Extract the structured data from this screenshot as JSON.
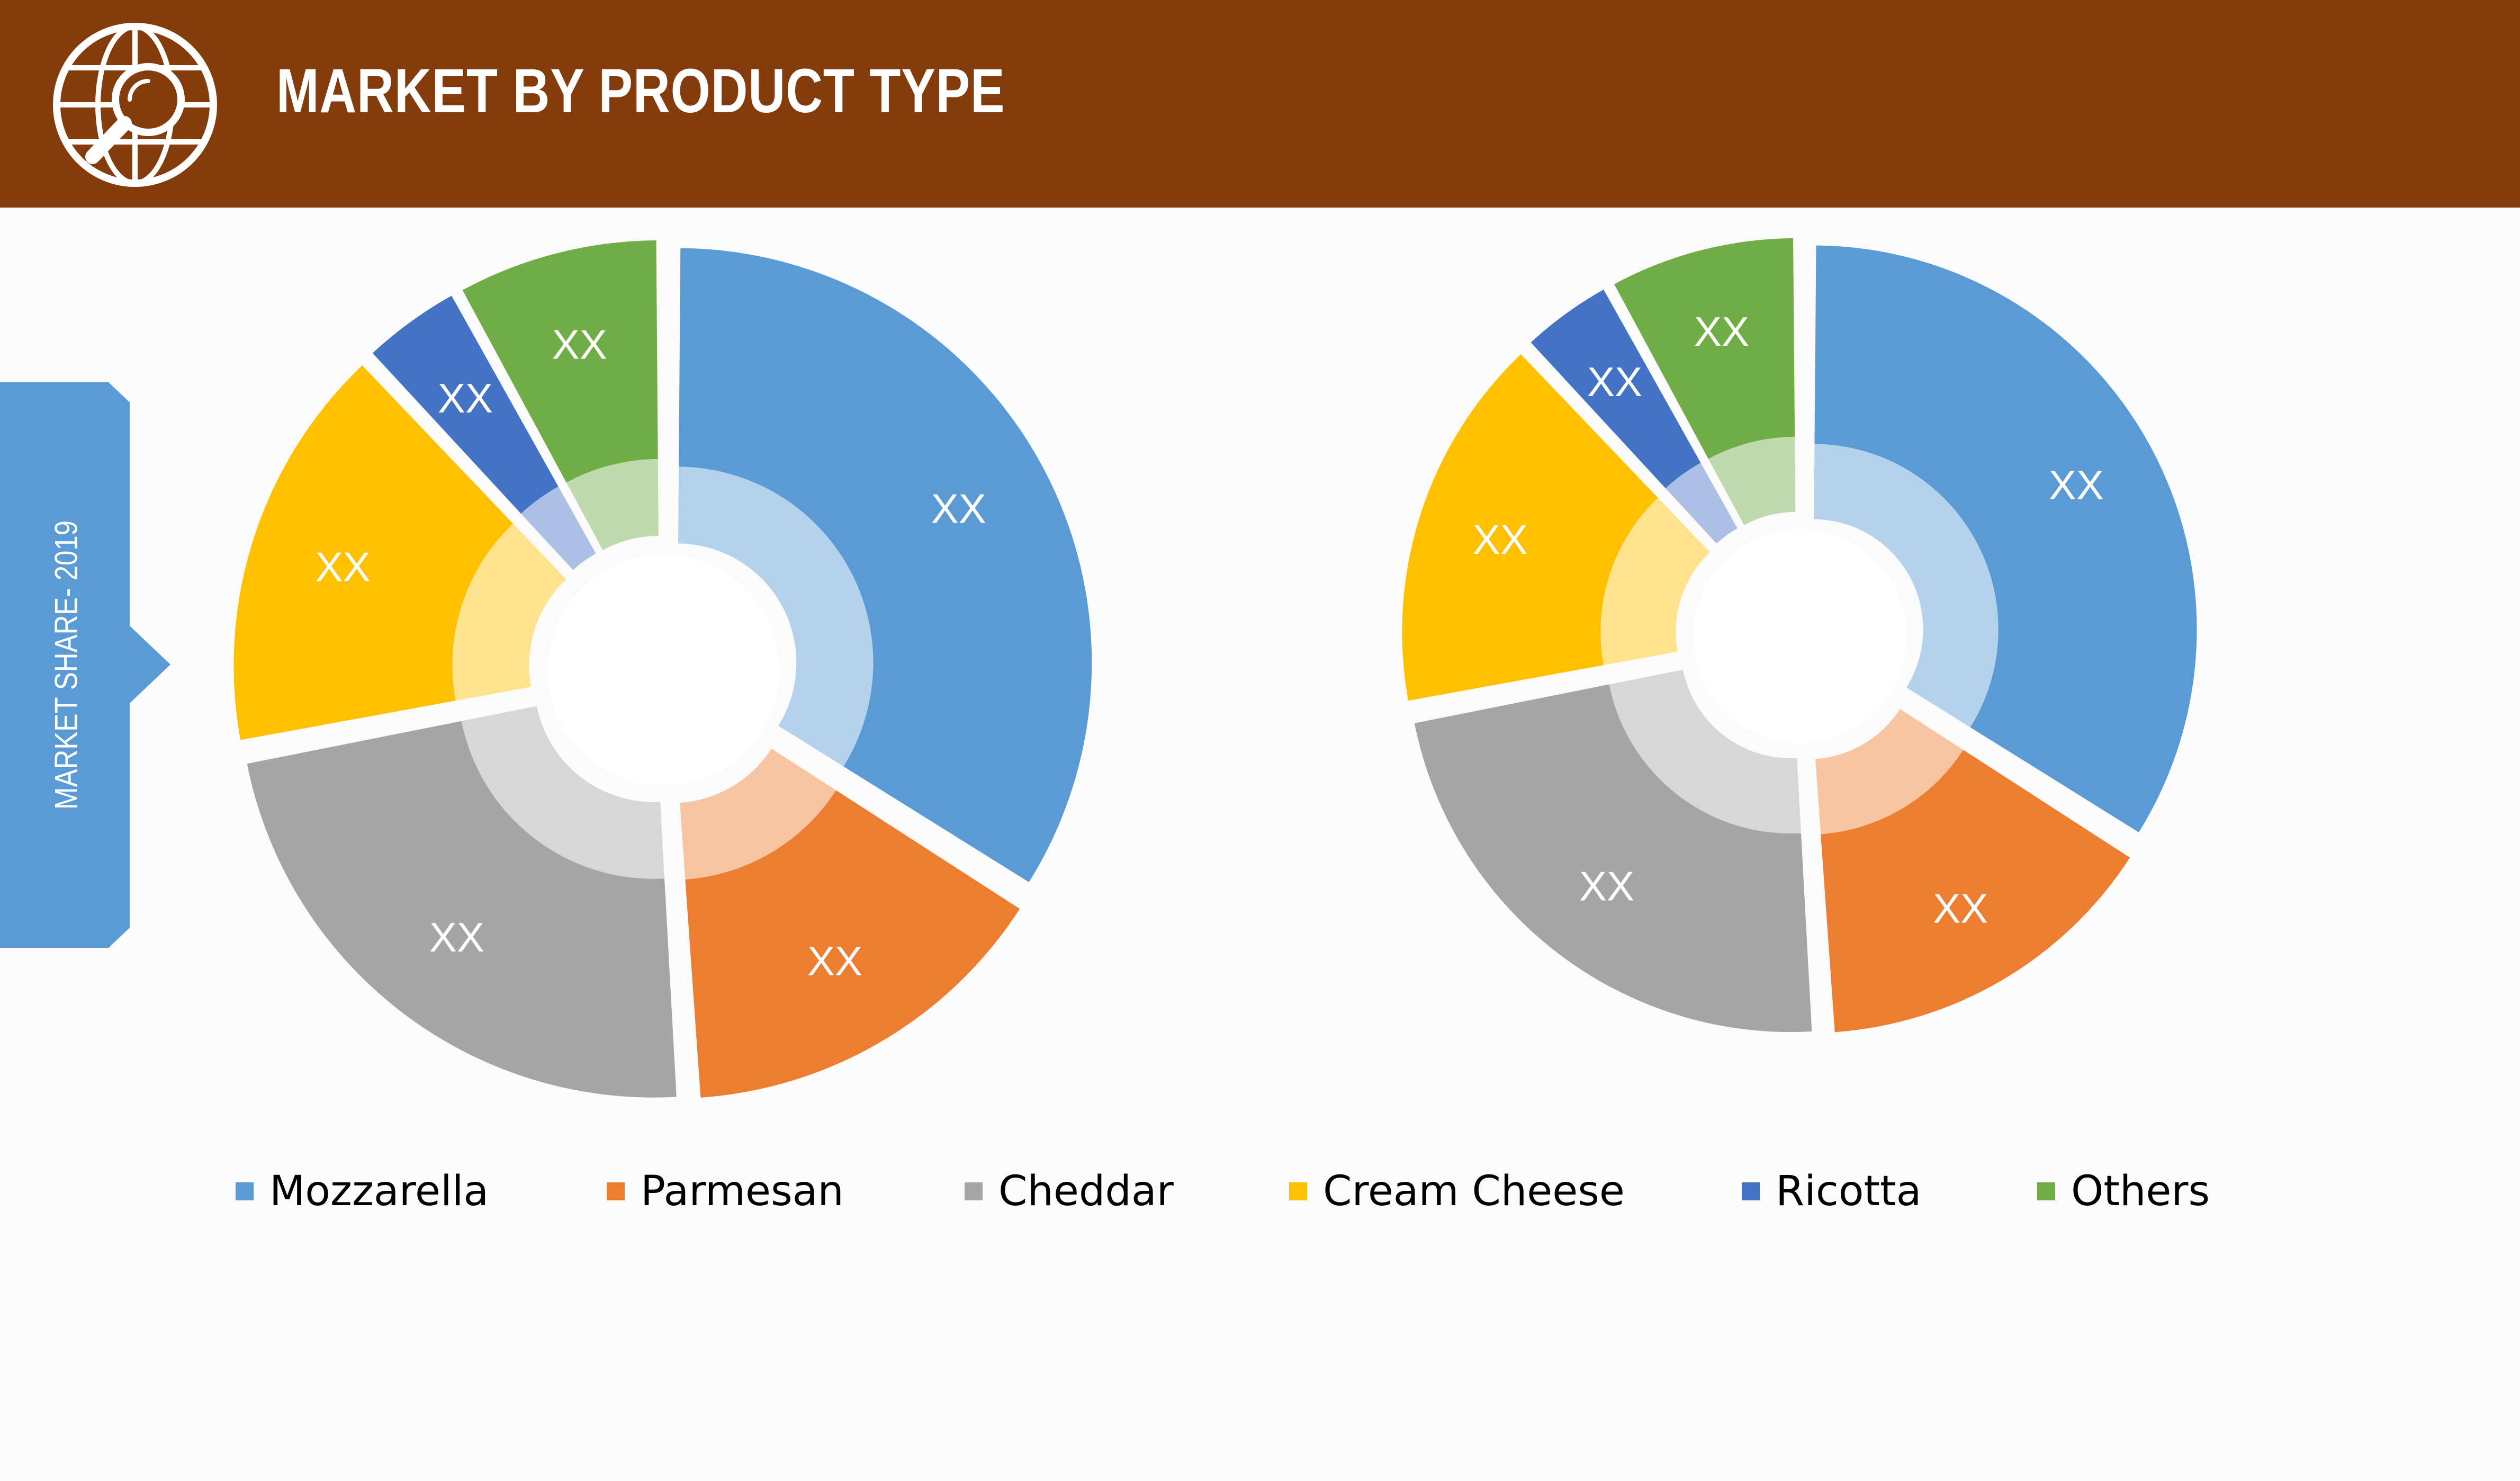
{
  "header": {
    "title": "MARKET BY PRODUCT TYPE",
    "icon": "globe-search-icon",
    "background": "#843c0c"
  },
  "side_tab": {
    "label": "MARKET SHARE- 2019",
    "color": "#5b9bd5"
  },
  "chart_data": [
    {
      "type": "pie",
      "style": "exploded-donut",
      "categories": [
        "Mozzarella",
        "Parmesan",
        "Cheddar",
        "Cream Cheese",
        "Ricotta",
        "Others"
      ],
      "values": [
        34,
        15,
        23,
        16,
        4,
        8
      ],
      "data_labels": [
        "XX",
        "XX",
        "XX",
        "XX",
        "XX",
        "XX"
      ],
      "colors": [
        "#5b9bd5",
        "#ed7d31",
        "#a5a5a5",
        "#ffc000",
        "#4472c4",
        "#70ad47"
      ]
    },
    {
      "type": "pie",
      "style": "exploded-donut",
      "categories": [
        "Mozzarella",
        "Parmesan",
        "Cheddar",
        "Cream Cheese",
        "Ricotta",
        "Others"
      ],
      "values": [
        34,
        15,
        23,
        16,
        4,
        8
      ],
      "data_labels": [
        "XX",
        "XX",
        "XX",
        "XX",
        "XX",
        "XX"
      ],
      "colors": [
        "#5b9bd5",
        "#ed7d31",
        "#a5a5a5",
        "#ffc000",
        "#4472c4",
        "#70ad47"
      ]
    }
  ],
  "legend": {
    "position": "bottom",
    "items": [
      {
        "label": "Mozzarella",
        "color": "#5b9bd5"
      },
      {
        "label": "Parmesan",
        "color": "#ed7d31"
      },
      {
        "label": "Cheddar",
        "color": "#a5a5a5"
      },
      {
        "label": "Cream Cheese",
        "color": "#ffc000"
      },
      {
        "label": "Ricotta",
        "color": "#4472c4"
      },
      {
        "label": "Others",
        "color": "#70ad47"
      }
    ]
  }
}
